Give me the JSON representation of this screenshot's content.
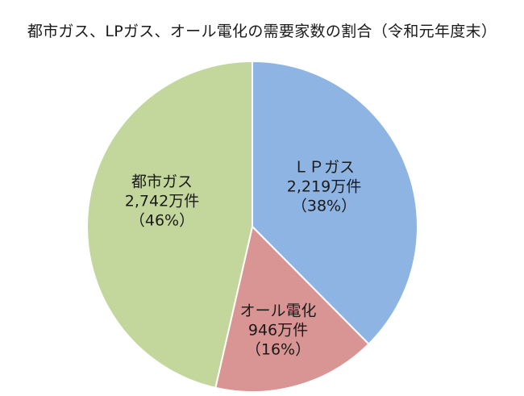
{
  "chart_data": {
    "type": "pie",
    "title": "都市ガス、LPガス、オール電化の需要家数の割合（令和元年度末）",
    "slices": [
      {
        "name": "ＬＰガス",
        "value_text": "2,219万件",
        "percent_text": "（38%）",
        "value": 2219,
        "percent": 38,
        "color": "#8eb4e3"
      },
      {
        "name": "オール電化",
        "value_text": "946万件",
        "percent_text": "（16%）",
        "value": 946,
        "percent": 16,
        "color": "#d99594"
      },
      {
        "name": "都市ガス",
        "value_text": "2,742万件",
        "percent_text": "（46%）",
        "value": 2742,
        "percent": 46,
        "color": "#c3d69b"
      }
    ],
    "start_angle_deg": 0,
    "direction": "clockwise",
    "border_color": "#ffffff"
  }
}
